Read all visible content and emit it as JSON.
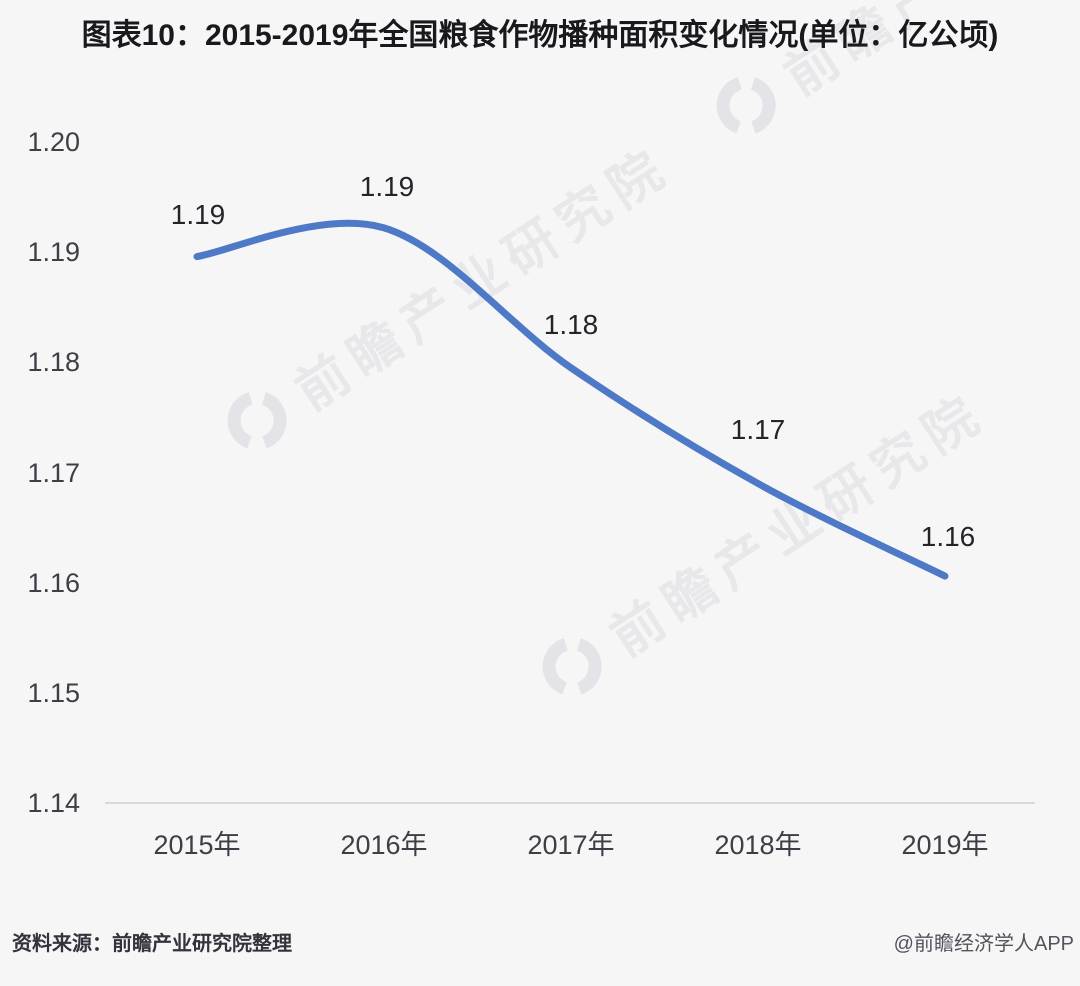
{
  "title": "图表10：2015-2019年全国粮食作物播种面积变化情况(单位：亿公顷)",
  "chart_data": {
    "type": "line",
    "title": "图表10：2015-2019年全国粮食作物播种面积变化情况",
    "unit": "亿公顷",
    "categories": [
      "2015年",
      "2016年",
      "2017年",
      "2018年",
      "2019年"
    ],
    "values": [
      1.19,
      1.19,
      1.18,
      1.17,
      1.16
    ],
    "plot_values": [
      1.1896,
      1.1922,
      1.1795,
      1.169,
      1.1606
    ],
    "data_labels": [
      "1.19",
      "1.19",
      "1.18",
      "1.17",
      "1.16"
    ],
    "yticks": [
      "1.20",
      "1.19",
      "1.18",
      "1.17",
      "1.16",
      "1.15",
      "1.14"
    ],
    "ylim": [
      1.14,
      1.2
    ],
    "xlabel": "",
    "ylabel": "",
    "grid": false,
    "legend": "none",
    "smooth": true,
    "line_color": "#4e79c6",
    "axis_line_color": "#d9d9db",
    "background_color": "#f6f6f7"
  },
  "watermark": {
    "text": "前瞻产业研究院",
    "logo": "qianzhan-ring-logo"
  },
  "footer": {
    "source": "资料来源：前瞻产业研究院整理",
    "credit": "@前瞻经济学人APP"
  }
}
